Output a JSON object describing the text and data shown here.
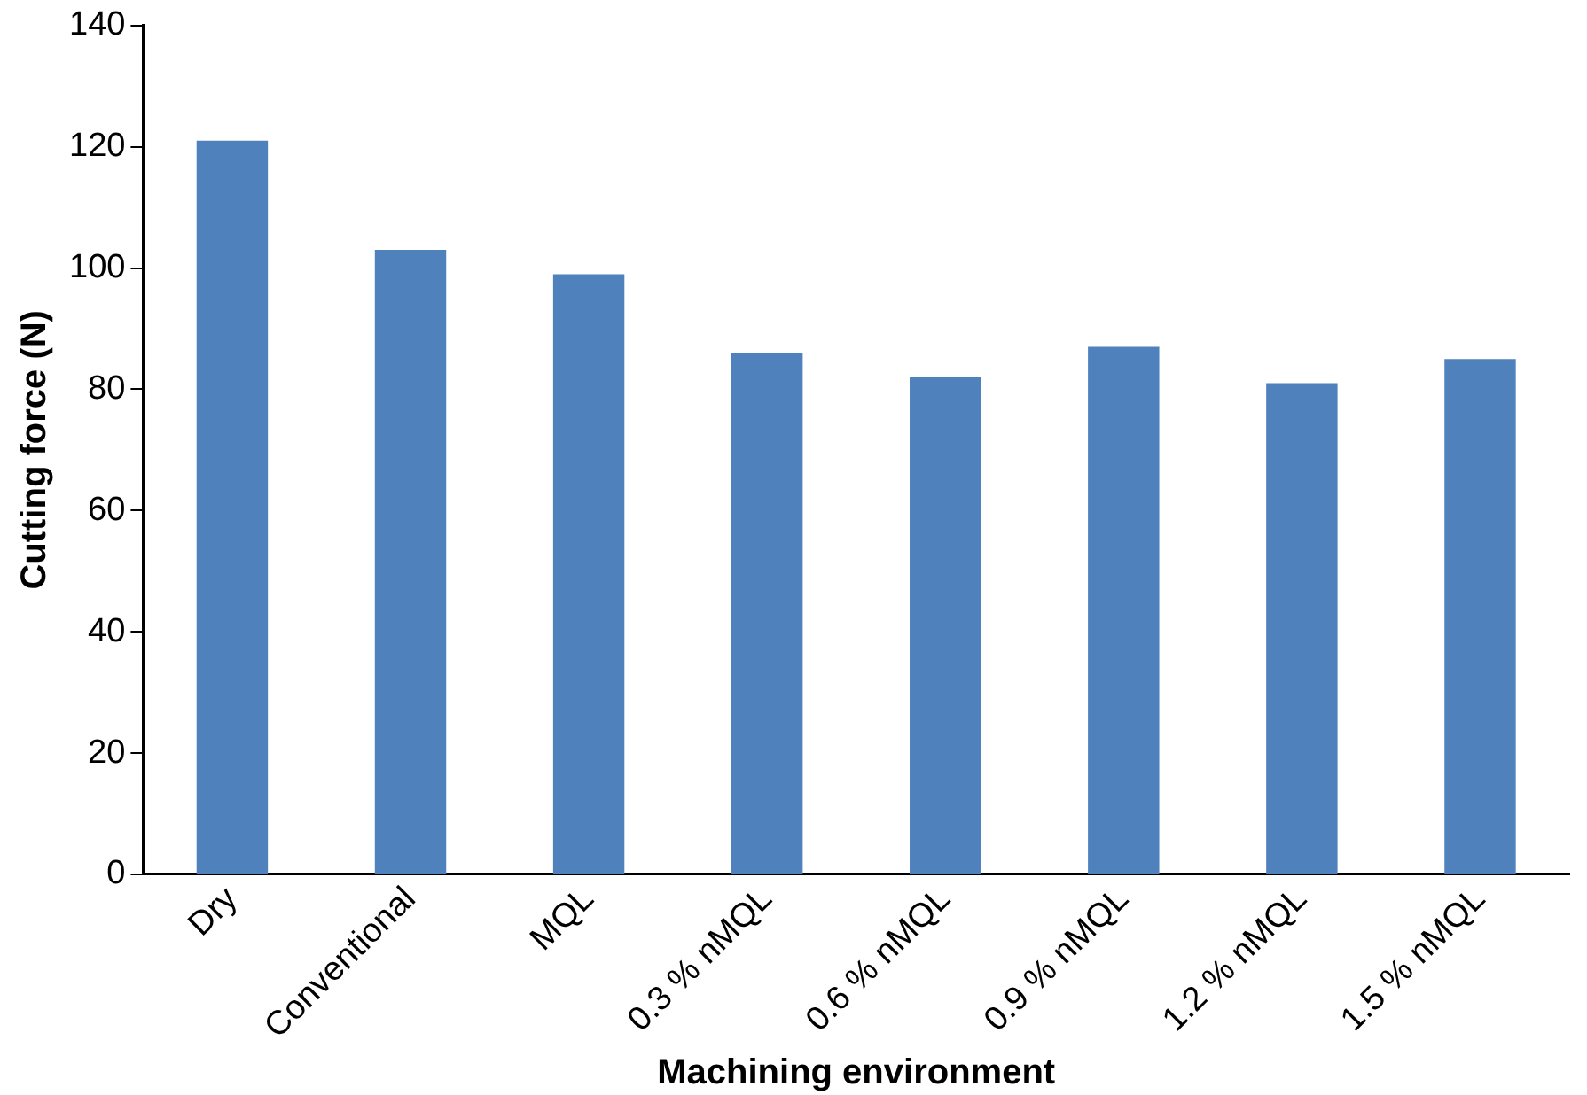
{
  "chart_data": {
    "type": "bar",
    "xlabel": "Machining environment",
    "ylabel": "Cutting force (N)",
    "categories": [
      "Dry",
      "Conventional",
      "MQL",
      "0.3 % nMQL",
      "0.6 % nMQL",
      "0.9 % nMQL",
      "1.2 % nMQL",
      "1.5 % nMQL"
    ],
    "values": [
      121,
      103,
      99,
      86,
      82,
      87,
      81,
      85
    ],
    "color": "#4f81bd",
    "ylim": [
      0,
      140
    ],
    "yticks": [
      0,
      20,
      40,
      60,
      80,
      100,
      120,
      140
    ],
    "grid": false,
    "legend": false
  }
}
